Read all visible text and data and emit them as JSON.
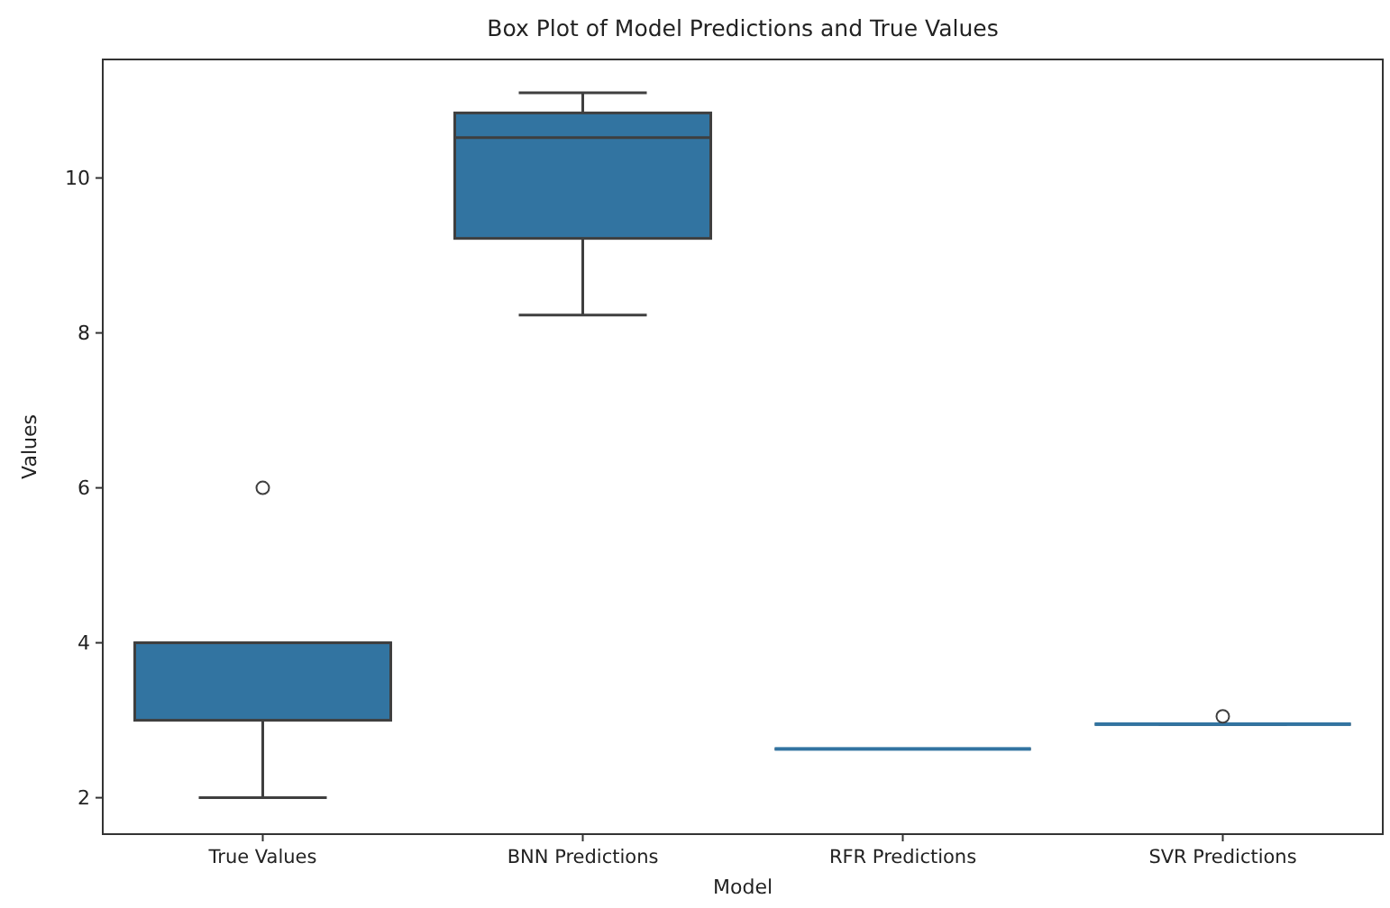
{
  "chart_data": {
    "type": "box",
    "title": "Box Plot of Model Predictions and True Values",
    "xlabel": "Model",
    "ylabel": "Values",
    "categories": [
      "True Values",
      "BNN Predictions",
      "RFR Predictions",
      "SVR Predictions"
    ],
    "color": "#3274a1",
    "boxes": [
      {
        "low": 2,
        "q1": 3,
        "median": 4,
        "q3": 4,
        "high": 4,
        "outliers": [
          6
        ]
      },
      {
        "low": 8.23,
        "q1": 9.22,
        "median": 10.52,
        "q3": 10.84,
        "high": 11.1
      },
      {
        "low": 2.63,
        "q1": 2.63,
        "median": 2.63,
        "q3": 2.63,
        "high": 2.63
      },
      {
        "low": 2.95,
        "q1": 2.95,
        "median": 2.95,
        "q3": 2.95,
        "high": 2.95,
        "outliers": [
          3.05
        ]
      }
    ],
    "ylim": [
      1.53,
      11.53
    ],
    "yticks": [
      2,
      4,
      6,
      8,
      10
    ],
    "grid": false
  }
}
